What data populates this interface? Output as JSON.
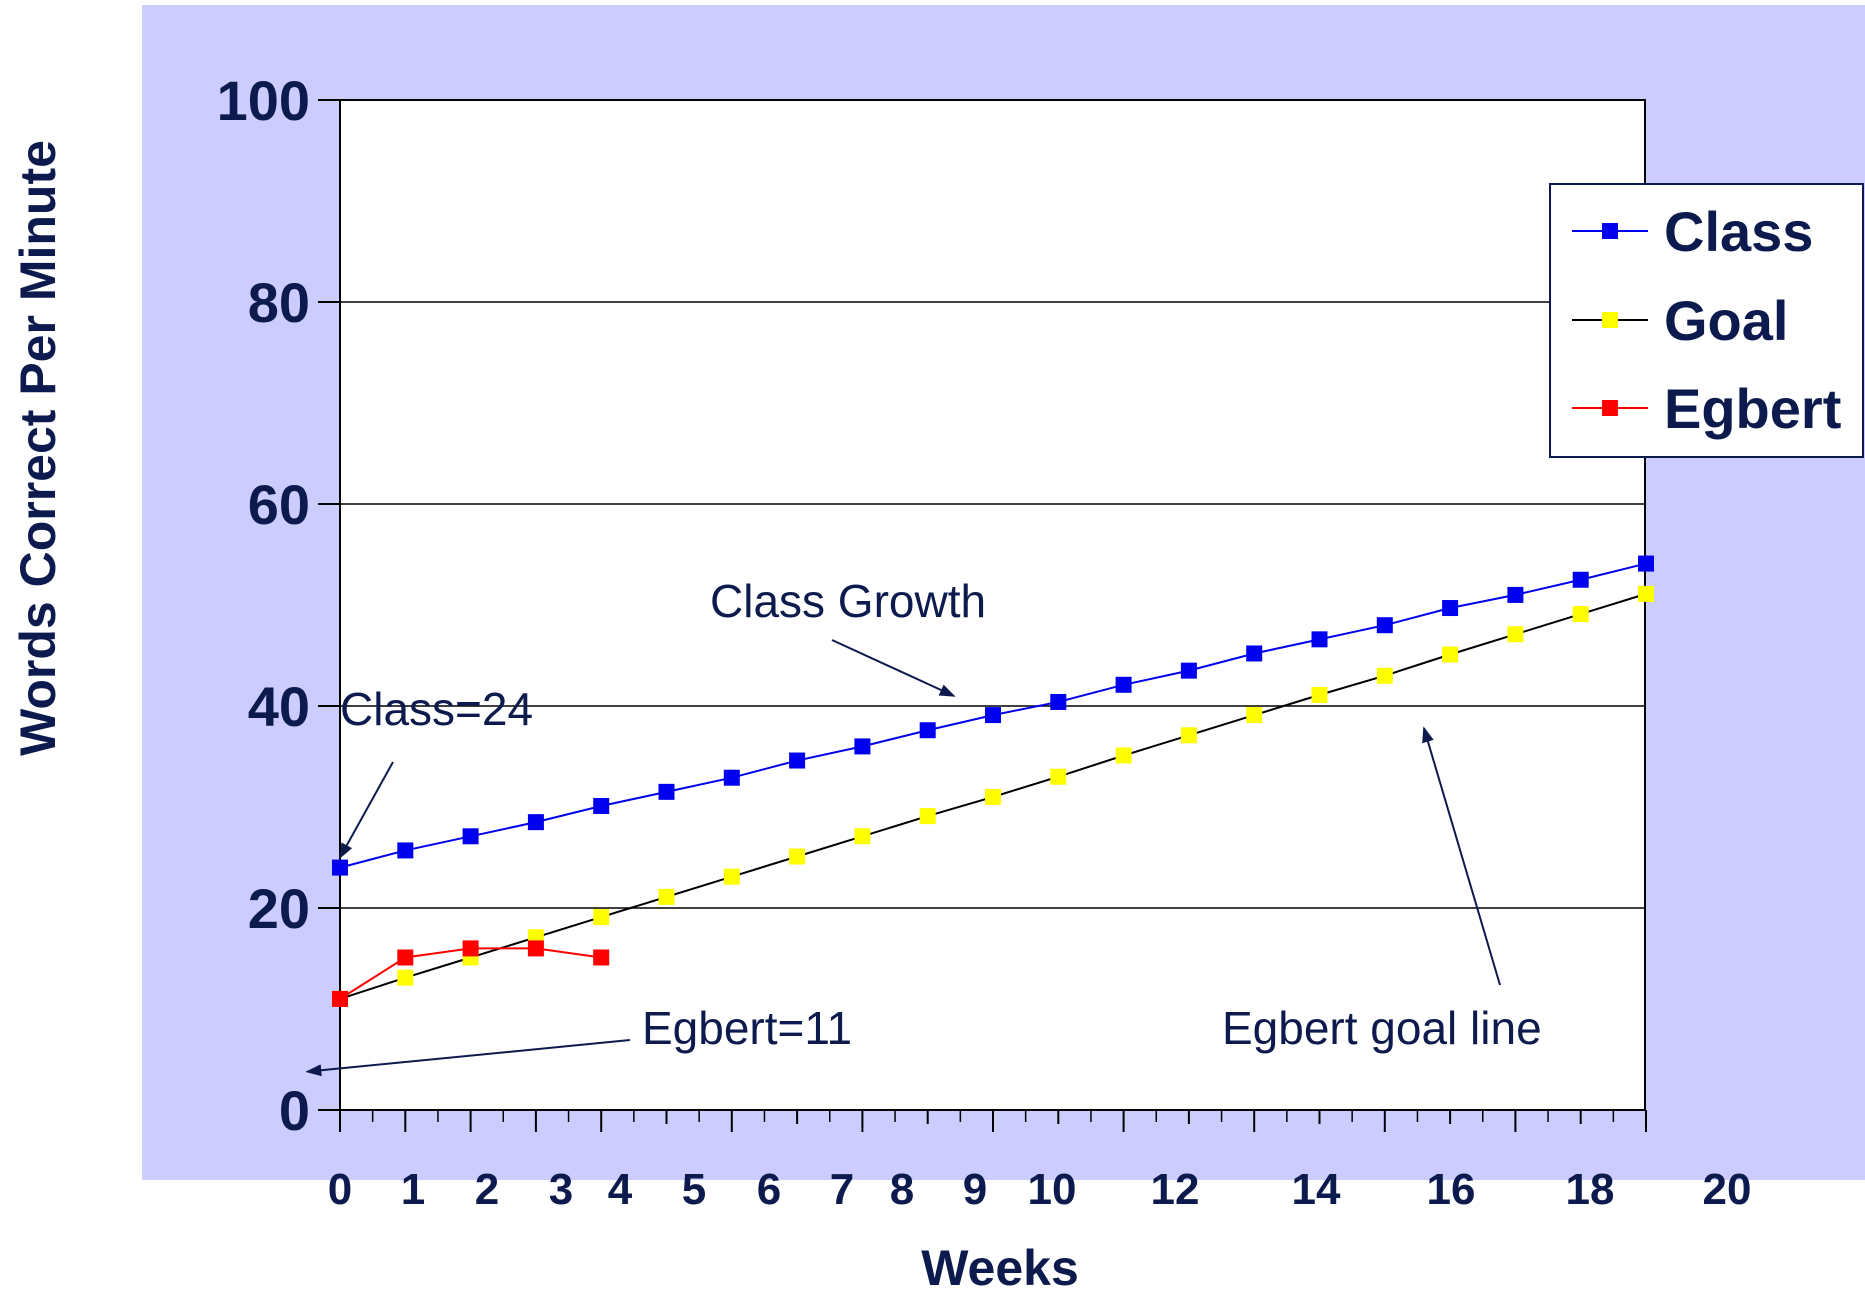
{
  "chart_data": {
    "type": "line",
    "title": "",
    "xlabel": "Weeks",
    "ylabel": "Words Correct Per Minute",
    "ylim": [
      0,
      100
    ],
    "xlim": [
      0,
      20
    ],
    "y_ticks": [
      "0",
      "20",
      "40",
      "60",
      "80",
      "100"
    ],
    "x_ticks": [
      "0",
      "1",
      "2",
      "3",
      "4",
      "5",
      "6",
      "7",
      "8",
      "9",
      "10",
      "12",
      "14",
      "16",
      "18",
      "20"
    ],
    "grid": "horizontal",
    "legend_position": "right",
    "series": [
      {
        "name": "Class",
        "color": "#0000ee",
        "line_color": "#0000ee",
        "marker": "square",
        "x": [
          0,
          1,
          2,
          3,
          4,
          5,
          6,
          7,
          8,
          9,
          10,
          11,
          12,
          13,
          14,
          15,
          16,
          17,
          18,
          19,
          20
        ],
        "values": [
          24,
          25.7,
          27.1,
          28.5,
          30.1,
          31.5,
          32.9,
          34.6,
          36,
          37.6,
          39.1,
          40.4,
          42.1,
          43.5,
          45.2,
          46.6,
          48,
          49.7,
          51,
          52.5,
          54.1
        ]
      },
      {
        "name": "Goal",
        "color": "#ffff00",
        "line_color": "#000000",
        "marker": "square",
        "x": [
          0,
          1,
          2,
          3,
          4,
          5,
          6,
          7,
          8,
          9,
          10,
          11,
          12,
          13,
          14,
          15,
          16,
          17,
          18,
          19,
          20
        ],
        "values": [
          11,
          13.1,
          15.1,
          17.1,
          19.1,
          21.1,
          23.1,
          25.1,
          27.1,
          29.1,
          31.0,
          33.0,
          35.1,
          37.1,
          39.1,
          41.1,
          43.0,
          45.1,
          47.1,
          49.1,
          51.1
        ]
      },
      {
        "name": "Egbert",
        "color": "#ff0000",
        "line_color": "#ff0000",
        "marker": "square",
        "x": [
          0,
          1,
          2,
          3,
          4
        ],
        "values": [
          11,
          15.1,
          16,
          16,
          15.1
        ]
      }
    ],
    "annotations": [
      {
        "text": "Class Growth",
        "point_to": [
          9.4,
          41.0
        ]
      },
      {
        "text": "Class=24",
        "point_to": [
          0,
          25
        ]
      },
      {
        "text": "Egbert=11",
        "point_to": [
          -0.5,
          3.8
        ]
      },
      {
        "text": "Egbert goal line",
        "point_to": [
          16.6,
          37.8
        ]
      }
    ],
    "colors": {
      "frame_background": "#ccccff",
      "plot_background": "#ffffff",
      "text": "#0d1a4d"
    }
  }
}
